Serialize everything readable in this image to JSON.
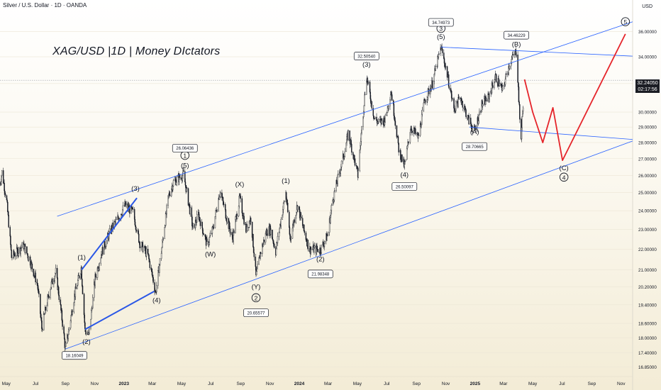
{
  "header": {
    "symbol_line": "Silver / U.S. Dollar · 1D · OANDA",
    "currency": "USD"
  },
  "title": "XAG/USD |1D | Money DIctators",
  "price_box": {
    "price": "32.24050",
    "timer": "02:17:56"
  },
  "colors": {
    "candles": "#131722",
    "channel": "#2962ff",
    "impulse": "#2a57e6",
    "projection": "#e5242a",
    "crosshair": "#9a9ea6"
  },
  "chart_data": {
    "type": "candlestick",
    "title": "XAG/USD |1D | Money DIctators",
    "x_ticks": [
      "May",
      "Jul",
      "Sep",
      "Nov",
      "2023",
      "Mar",
      "May",
      "Jul",
      "Sep",
      "Nov",
      "2024",
      "Mar",
      "May",
      "Jul",
      "Sep",
      "Nov",
      "2025",
      "Mar",
      "May",
      "Jul",
      "Sep",
      "Nov"
    ],
    "y_ticks": [
      "36.00000",
      "34.00000",
      "32.00000",
      "30.00000",
      "29.00000",
      "28.00000",
      "27.00000",
      "26.00000",
      "25.00000",
      "24.00000",
      "23.00000",
      "22.00000",
      "21.00000",
      "20.20000",
      "19.40000",
      "18.60000",
      "18.00000",
      "17.40000",
      "16.85000"
    ],
    "y_scale": "log",
    "y_range": [
      16.6,
      37.8
    ],
    "x_range": [
      "2022-04-18",
      "2025-11-25"
    ],
    "current_price": 32.2405,
    "price_anchors": [
      [
        "2022-04-18",
        25.5
      ],
      [
        "2022-04-22",
        26.2
      ],
      [
        "2022-05-02",
        24.5
      ],
      [
        "2022-05-12",
        21.6
      ],
      [
        "2022-06-06",
        22.2
      ],
      [
        "2022-06-20",
        21.4
      ],
      [
        "2022-07-05",
        20.3
      ],
      [
        "2022-07-14",
        18.4
      ],
      [
        "2022-08-01",
        20.2
      ],
      [
        "2022-08-12",
        20.9
      ],
      [
        "2022-08-25",
        18.8
      ],
      [
        "2022-09-01",
        17.55
      ],
      [
        "2022-09-08",
        18.3
      ],
      [
        "2022-09-20",
        19.8
      ],
      [
        "2022-10-04",
        21.1
      ],
      [
        "2022-10-12",
        18.3
      ],
      [
        "2022-10-20",
        18.1
      ],
      [
        "2022-11-02",
        20.6
      ],
      [
        "2022-11-15",
        21.8
      ],
      [
        "2022-12-05",
        23.0
      ],
      [
        "2022-12-20",
        23.6
      ],
      [
        "2023-01-03",
        24.3
      ],
      [
        "2023-01-20",
        23.9
      ],
      [
        "2023-02-03",
        22.3
      ],
      [
        "2023-02-20",
        21.7
      ],
      [
        "2023-03-08",
        19.95
      ],
      [
        "2023-03-20",
        21.9
      ],
      [
        "2023-04-04",
        24.8
      ],
      [
        "2023-04-14",
        25.6
      ],
      [
        "2023-05-05",
        26.06
      ],
      [
        "2023-05-25",
        23.0
      ],
      [
        "2023-06-05",
        23.8
      ],
      [
        "2023-06-23",
        22.2
      ],
      [
        "2023-07-05",
        23.0
      ],
      [
        "2023-07-20",
        25.1
      ],
      [
        "2023-08-03",
        23.6
      ],
      [
        "2023-08-15",
        22.5
      ],
      [
        "2023-08-30",
        24.7
      ],
      [
        "2023-09-12",
        23.0
      ],
      [
        "2023-09-22",
        23.6
      ],
      [
        "2023-10-03",
        20.66
      ],
      [
        "2023-10-12",
        21.8
      ],
      [
        "2023-10-25",
        22.9
      ],
      [
        "2023-11-02",
        23.0
      ],
      [
        "2023-11-13",
        21.9
      ],
      [
        "2023-12-04",
        25.0
      ],
      [
        "2023-12-13",
        22.5
      ],
      [
        "2023-12-28",
        24.3
      ],
      [
        "2024-01-10",
        23.0
      ],
      [
        "2024-01-22",
        22.0
      ],
      [
        "2024-02-14",
        21.98
      ],
      [
        "2024-02-29",
        22.7
      ],
      [
        "2024-03-10",
        24.5
      ],
      [
        "2024-04-05",
        27.5
      ],
      [
        "2024-04-12",
        28.6
      ],
      [
        "2024-05-02",
        26.0
      ],
      [
        "2024-05-20",
        32.51
      ],
      [
        "2024-06-05",
        29.6
      ],
      [
        "2024-06-14",
        29.3
      ],
      [
        "2024-06-28",
        29.5
      ],
      [
        "2024-07-10",
        31.5
      ],
      [
        "2024-07-26",
        27.6
      ],
      [
        "2024-08-07",
        26.5
      ],
      [
        "2024-08-20",
        29.0
      ],
      [
        "2024-09-05",
        28.3
      ],
      [
        "2024-09-18",
        30.8
      ],
      [
        "2024-10-04",
        32.0
      ],
      [
        "2024-10-22",
        34.75
      ],
      [
        "2024-11-05",
        32.5
      ],
      [
        "2024-11-18",
        30.2
      ],
      [
        "2024-12-02",
        31.0
      ],
      [
        "2024-12-18",
        29.5
      ],
      [
        "2024-12-31",
        28.71
      ],
      [
        "2025-01-15",
        30.5
      ],
      [
        "2025-01-29",
        31.0
      ],
      [
        "2025-02-12",
        32.5
      ],
      [
        "2025-02-27",
        31.5
      ],
      [
        "2025-03-14",
        33.5
      ],
      [
        "2025-03-28",
        34.46
      ],
      [
        "2025-04-04",
        29.5
      ],
      [
        "2025-04-07",
        28.4
      ],
      [
        "2025-04-14",
        32.24
      ]
    ],
    "channel_lines": [
      {
        "from": [
          "2022-09-01",
          17.55
        ],
        "to": [
          "2025-11-25",
          28.1
        ]
      },
      {
        "from": [
          "2022-08-15",
          23.7
        ],
        "to": [
          "2025-11-25",
          36.8
        ]
      },
      {
        "from": [
          "2024-10-22",
          34.75
        ],
        "to": [
          "2025-11-25",
          34.05
        ]
      },
      {
        "from": [
          "2024-12-20",
          29.0
        ],
        "to": [
          "2025-11-25",
          28.2
        ]
      }
    ],
    "impulse_lines": [
      {
        "from": [
          "2022-10-05",
          21.0
        ],
        "to": [
          "2023-01-28",
          24.7
        ]
      },
      {
        "from": [
          "2022-10-12",
          18.35
        ],
        "to": [
          "2023-03-05",
          20.0
        ]
      }
    ],
    "projection_path": [
      [
        "2025-04-14",
        32.3
      ],
      [
        "2025-05-01",
        30.0
      ],
      [
        "2025-05-22",
        28.0
      ],
      [
        "2025-06-12",
        30.3
      ],
      [
        "2025-07-02",
        26.9
      ],
      [
        "2025-11-10",
        35.8
      ]
    ],
    "wave_labels": [
      {
        "text": "(1)",
        "at": [
          "2022-10-05",
          21.5
        ],
        "circled": false
      },
      {
        "text": "(2)",
        "at": [
          "2022-10-15",
          17.75
        ],
        "circled": false
      },
      {
        "text": "(3)",
        "at": [
          "2023-01-25",
          25.1
        ],
        "circled": false
      },
      {
        "text": "(4)",
        "at": [
          "2023-03-10",
          19.5
        ],
        "circled": false
      },
      {
        "text": "(5)",
        "at": [
          "2023-05-08",
          26.45
        ],
        "circled": false
      },
      {
        "text": "1",
        "at": [
          "2023-05-08",
          27.05
        ],
        "circled": true
      },
      {
        "text": "(W)",
        "at": [
          "2023-06-30",
          21.65
        ],
        "circled": false
      },
      {
        "text": "(X)",
        "at": [
          "2023-08-30",
          25.35
        ],
        "circled": false
      },
      {
        "text": "(Y)",
        "at": [
          "2023-10-03",
          20.1
        ],
        "circled": false
      },
      {
        "text": "2",
        "at": [
          "2023-10-03",
          19.6
        ],
        "circled": true
      },
      {
        "text": "(1)",
        "at": [
          "2023-12-04",
          25.55
        ],
        "circled": false
      },
      {
        "text": "(2)",
        "at": [
          "2024-02-14",
          21.4
        ],
        "circled": false
      },
      {
        "text": "(3)",
        "at": [
          "2024-05-20",
          33.25
        ],
        "circled": false
      },
      {
        "text": "(4)",
        "at": [
          "2024-08-07",
          25.9
        ],
        "circled": false
      },
      {
        "text": "3",
        "at": [
          "2024-10-22",
          36.05
        ],
        "circled": true
      },
      {
        "text": "(5)",
        "at": [
          "2024-10-22",
          35.4
        ],
        "circled": false
      },
      {
        "text": "(A)",
        "at": [
          "2024-12-31",
          28.55
        ],
        "circled": false
      },
      {
        "text": "(B)",
        "at": [
          "2025-03-28",
          34.8
        ],
        "circled": false
      },
      {
        "text": "(C)",
        "at": [
          "2025-07-05",
          26.3
        ],
        "circled": false
      },
      {
        "text": "4",
        "at": [
          "2025-07-05",
          25.75
        ],
        "circled": true
      },
      {
        "text": "5",
        "at": [
          "2025-11-10",
          36.6
        ],
        "circled": true
      }
    ],
    "price_labels": [
      {
        "text": "18.16049",
        "at": [
          "2022-09-20",
          17.3
        ]
      },
      {
        "text": "26.06436",
        "at": [
          "2023-05-08",
          27.65
        ]
      },
      {
        "text": "20.65577",
        "at": [
          "2023-10-03",
          19.05
        ]
      },
      {
        "text": "21.98348",
        "at": [
          "2024-02-14",
          20.8
        ]
      },
      {
        "text": "32.50540",
        "at": [
          "2024-05-20",
          34.05
        ]
      },
      {
        "text": "26.50097",
        "at": [
          "2024-08-07",
          25.35
        ]
      },
      {
        "text": "34.74973",
        "at": [
          "2024-10-22",
          36.75
        ]
      },
      {
        "text": "28.70665",
        "at": [
          "2024-12-31",
          27.75
        ]
      },
      {
        "text": "34.46229",
        "at": [
          "2025-03-28",
          35.7
        ]
      }
    ]
  }
}
